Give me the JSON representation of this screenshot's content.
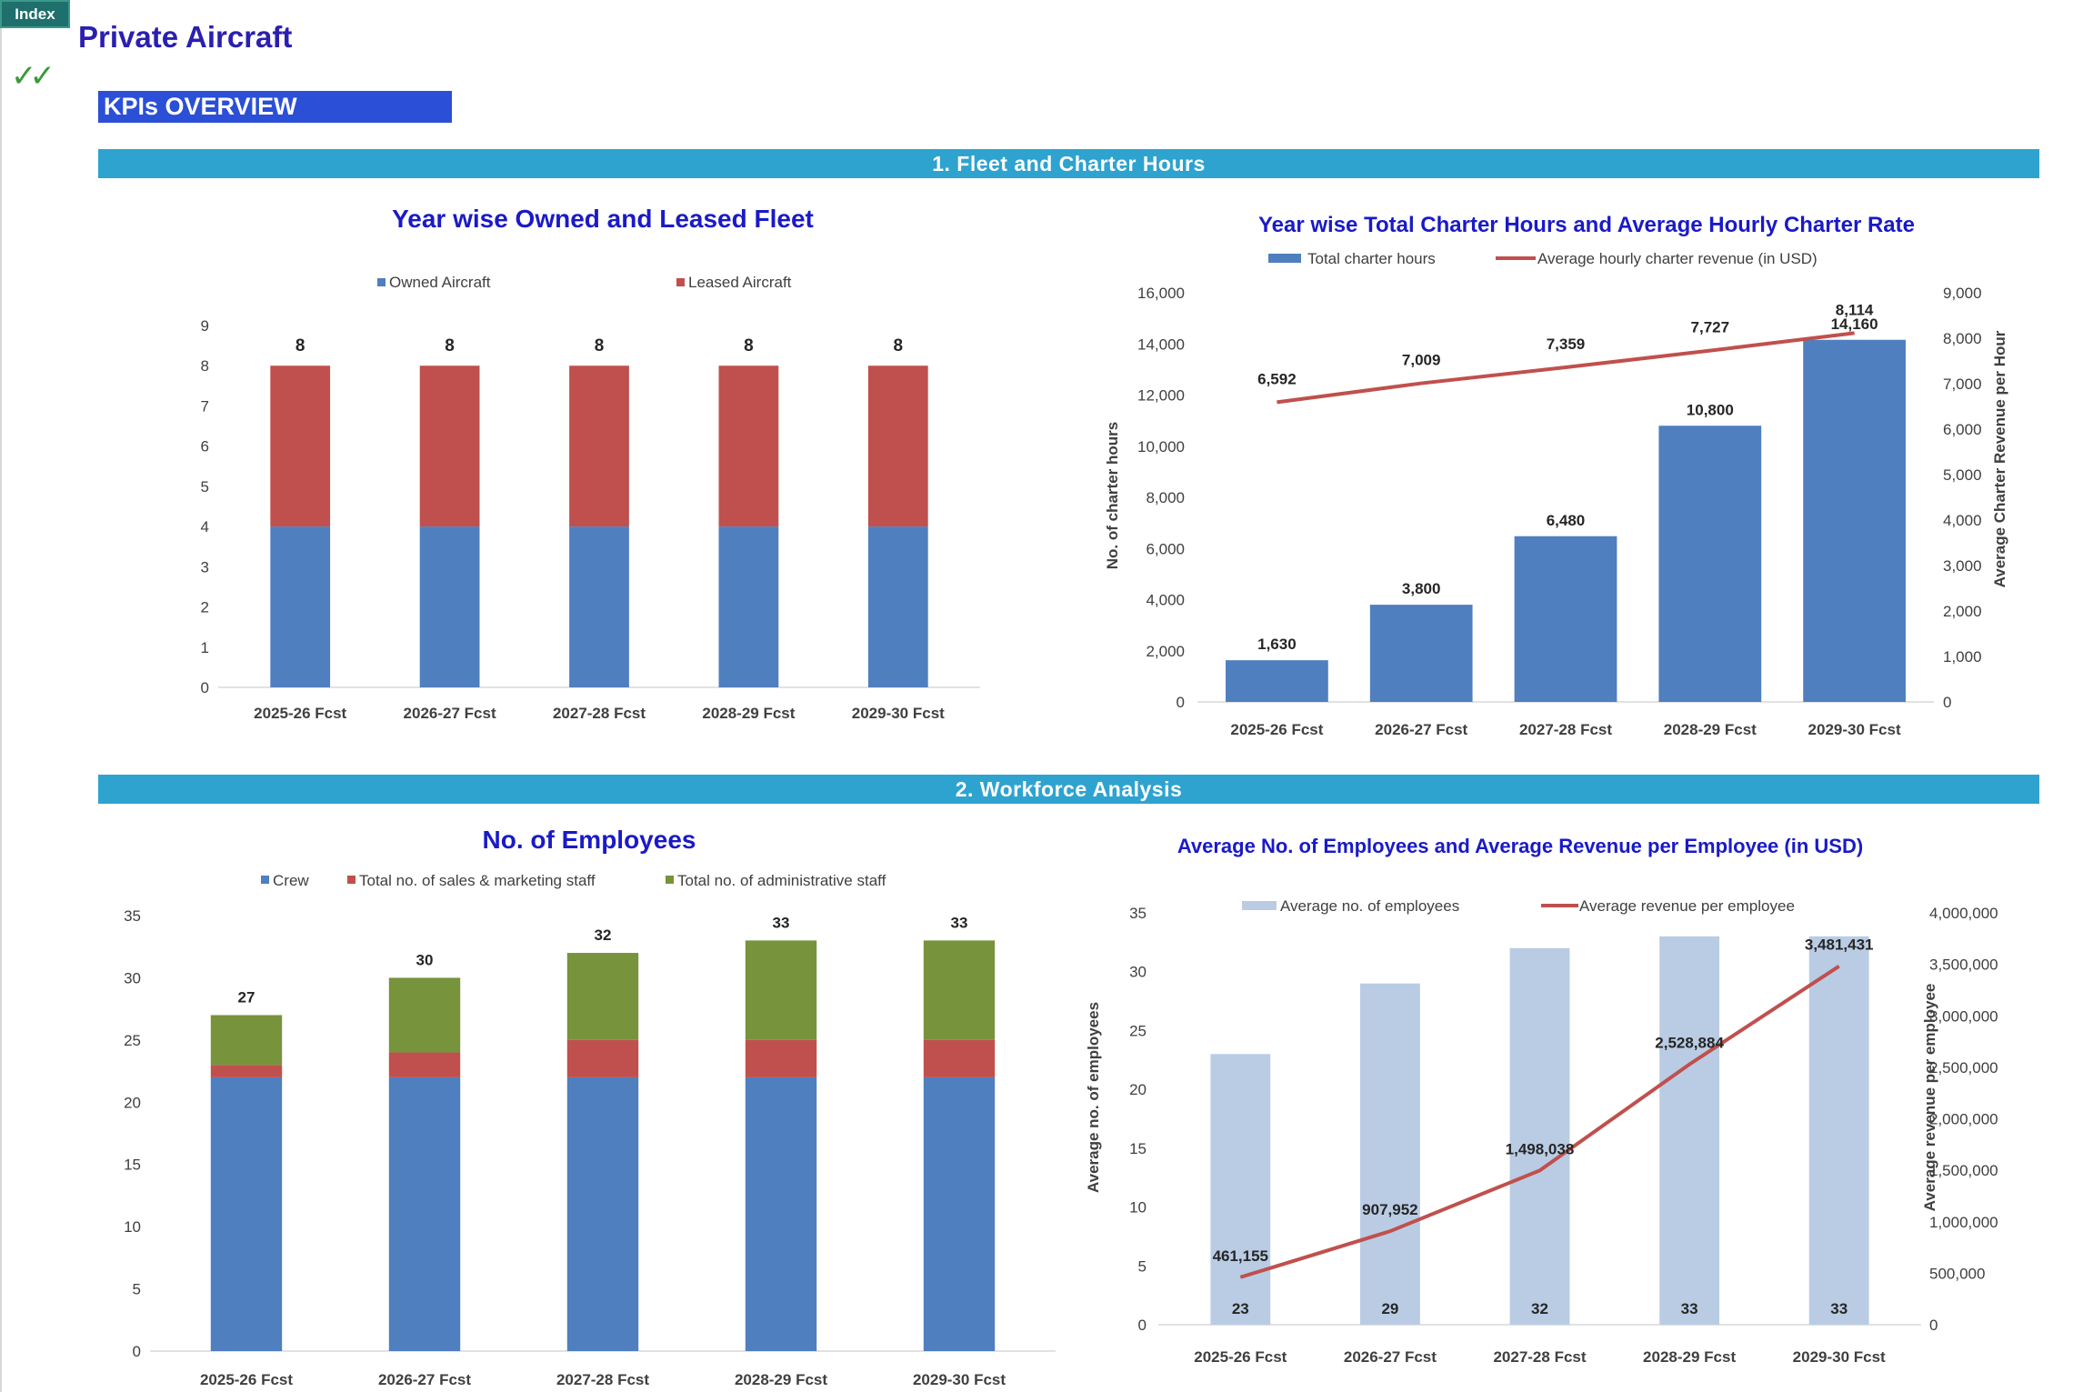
{
  "header": {
    "index_label": "Index",
    "page_title": "Private Aircraft",
    "check_glyph": "✓✓",
    "kpi_banner": "KPIs OVERVIEW"
  },
  "sections": {
    "fleet": "1. Fleet and Charter Hours",
    "workforce": "2. Workforce Analysis"
  },
  "colors": {
    "blue": "#4f7fbe",
    "red": "#c0504d",
    "green": "#77933c",
    "lightblue": "#b9cce4",
    "section_bar": "#2ea3cf",
    "title": "#1a1ac8"
  },
  "chart_data": [
    {
      "id": "fleet",
      "type": "bar",
      "stacked": true,
      "title": "Year wise Owned and Leased Fleet",
      "categories": [
        "2025-26 Fcst",
        "2026-27 Fcst",
        "2027-28 Fcst",
        "2028-29 Fcst",
        "2029-30 Fcst"
      ],
      "series": [
        {
          "name": "Owned Aircraft",
          "values": [
            4,
            4,
            4,
            4,
            4
          ]
        },
        {
          "name": "Leased Aircraft",
          "values": [
            4,
            4,
            4,
            4,
            4
          ]
        }
      ],
      "totals": [
        8,
        8,
        8,
        8,
        8
      ],
      "ylim": [
        0,
        9
      ],
      "yticks": [
        "0",
        "1",
        "2",
        "3",
        "4",
        "5",
        "6",
        "7",
        "8",
        "9"
      ],
      "legend": "top",
      "grid": false
    },
    {
      "id": "charter",
      "type": "bar",
      "title": "Year wise Total Charter Hours and Average Hourly Charter Rate",
      "categories": [
        "2025-26 Fcst",
        "2026-27 Fcst",
        "2027-28 Fcst",
        "2028-29 Fcst",
        "2029-30 Fcst"
      ],
      "series": [
        {
          "name": "Total charter hours",
          "type": "bar",
          "axis": "left",
          "values": [
            1630,
            3800,
            6480,
            10800,
            14160
          ],
          "labels": [
            "1,630",
            "3,800",
            "6,480",
            "10,800",
            "14,160"
          ]
        },
        {
          "name": "Average hourly charter revenue (in USD)",
          "type": "line",
          "axis": "right",
          "values": [
            6592,
            7009,
            7359,
            7727,
            8114
          ],
          "labels": [
            "6,592",
            "7,009",
            "7,359",
            "7,727",
            "8,114"
          ]
        }
      ],
      "ylabel": "No. of charter hours",
      "y2label": "Average Charter  Revenue  per Hour",
      "ylim": [
        0,
        16000
      ],
      "y2lim": [
        0,
        9000
      ],
      "yticks": [
        "0",
        "2,000",
        "4,000",
        "6,000",
        "8,000",
        "10,000",
        "12,000",
        "14,000",
        "16,000"
      ],
      "y2ticks": [
        "0",
        "1,000",
        "2,000",
        "3,000",
        "4,000",
        "5,000",
        "6,000",
        "7,000",
        "8,000",
        "9,000"
      ],
      "legend": "top",
      "grid": false
    },
    {
      "id": "employees",
      "type": "bar",
      "stacked": true,
      "title": "No. of Employees",
      "categories": [
        "2025-26 Fcst",
        "2026-27 Fcst",
        "2027-28 Fcst",
        "2028-29 Fcst",
        "2029-30 Fcst"
      ],
      "series": [
        {
          "name": "Crew",
          "values": [
            22,
            22,
            22,
            22,
            22
          ]
        },
        {
          "name": "Total no. of sales & marketing staff",
          "values": [
            1,
            2,
            3,
            3,
            3
          ]
        },
        {
          "name": "Total no. of administrative staff",
          "values": [
            4,
            6,
            7,
            8,
            8
          ]
        }
      ],
      "totals": [
        27,
        30,
        32,
        33,
        33
      ],
      "ylim": [
        0,
        35
      ],
      "yticks": [
        "0",
        "5",
        "10",
        "15",
        "20",
        "25",
        "30",
        "35"
      ],
      "legend": "top",
      "grid": false
    },
    {
      "id": "revenue",
      "type": "bar",
      "title": "Average No. of Employees and Average Revenue per Employee (in USD)",
      "categories": [
        "2025-26 Fcst",
        "2026-27 Fcst",
        "2027-28 Fcst",
        "2028-29 Fcst",
        "2029-30 Fcst"
      ],
      "series": [
        {
          "name": "Average no. of employees",
          "type": "bar",
          "axis": "left",
          "values": [
            23,
            29,
            32,
            33,
            33
          ],
          "labels": [
            "23",
            "29",
            "32",
            "33",
            "33"
          ]
        },
        {
          "name": "Average revenue per employee",
          "type": "line",
          "axis": "right",
          "values": [
            461155,
            907952,
            1498038,
            2528884,
            3481431
          ],
          "labels": [
            "461,155",
            "907,952",
            "1,498,038",
            "2,528,884",
            "3,481,431"
          ]
        }
      ],
      "ylabel": "Average no. of  employees",
      "y2label": "Average revenue per employee",
      "ylim": [
        0,
        35
      ],
      "y2lim": [
        0,
        4000000
      ],
      "yticks": [
        "0",
        "5",
        "10",
        "15",
        "20",
        "25",
        "30",
        "35"
      ],
      "y2ticks": [
        "0",
        "500,000",
        "1,000,000",
        "1,500,000",
        "2,000,000",
        "2,500,000",
        "3,000,000",
        "3,500,000",
        "4,000,000"
      ],
      "legend": "top",
      "grid": false
    }
  ]
}
